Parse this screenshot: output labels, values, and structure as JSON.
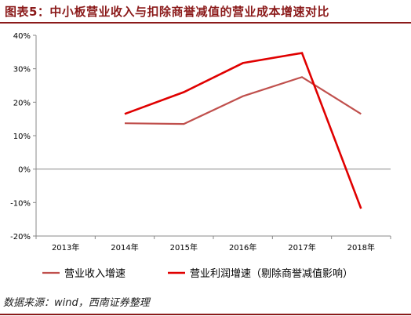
{
  "header": {
    "title": "图表5：中小板营业收入与扣除商誉减值的营业成本增速对比"
  },
  "source": "数据来源：wind，西南证券整理",
  "colors": {
    "accent": "#8b1a1a",
    "series_revenue": "#c0504d",
    "series_profit": "#e00000"
  },
  "chart_data": {
    "type": "line",
    "title": "",
    "xlabel": "",
    "ylabel": "",
    "categories": [
      "2013年",
      "2014年",
      "2015年",
      "2016年",
      "2017年",
      "2018年"
    ],
    "ylim": [
      -20,
      40
    ],
    "yticks": [
      -20,
      -10,
      0,
      10,
      20,
      30,
      40
    ],
    "ytick_labels": [
      "-20%",
      "-10%",
      "0%",
      "10%",
      "20%",
      "30%",
      "40%"
    ],
    "grid": false,
    "legend_position": "bottom",
    "series": [
      {
        "name": "营业收入增速",
        "color": "#c0504d",
        "values": [
          null,
          13.7,
          13.5,
          21.8,
          27.5,
          16.5
        ]
      },
      {
        "name": "营业利润增速（剔除商誉减值影响）",
        "color": "#e00000",
        "values": [
          null,
          16.5,
          23.0,
          31.7,
          34.7,
          -11.8
        ]
      }
    ]
  }
}
